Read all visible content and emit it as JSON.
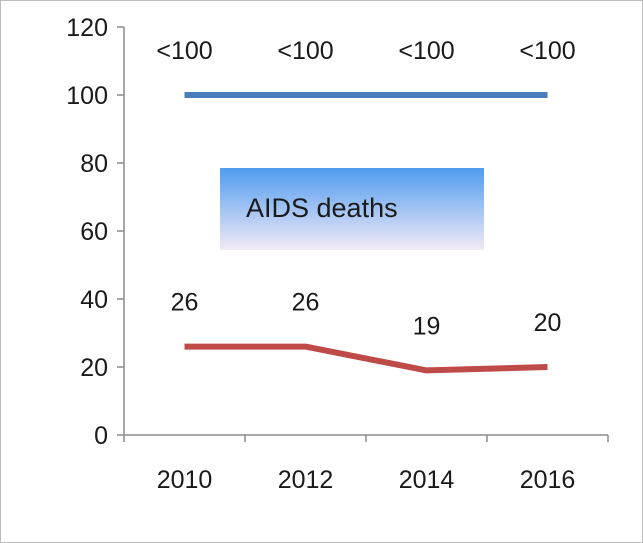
{
  "chart_data": {
    "type": "line",
    "categories": [
      "2010",
      "2012",
      "2014",
      "2016"
    ],
    "series": [
      {
        "values": [
          100,
          100,
          100,
          100
        ],
        "labels": [
          "<100",
          "<100",
          "<100",
          "<100"
        ],
        "color": "#4a7ebb"
      },
      {
        "values": [
          26,
          26,
          19,
          20
        ],
        "labels": [
          "26",
          "26",
          "19",
          "20"
        ],
        "color": "#be4b48"
      }
    ],
    "ylim": [
      0,
      120
    ],
    "yticks": [
      "0",
      "20",
      "40",
      "60",
      "80",
      "100",
      "120"
    ],
    "annotation": "AIDS deaths",
    "grid": false,
    "legend": "none"
  },
  "colors": {
    "axis": "#8c8c8c",
    "box_top": "#4f9cf0",
    "box_bottom": "#f3eaf6"
  }
}
